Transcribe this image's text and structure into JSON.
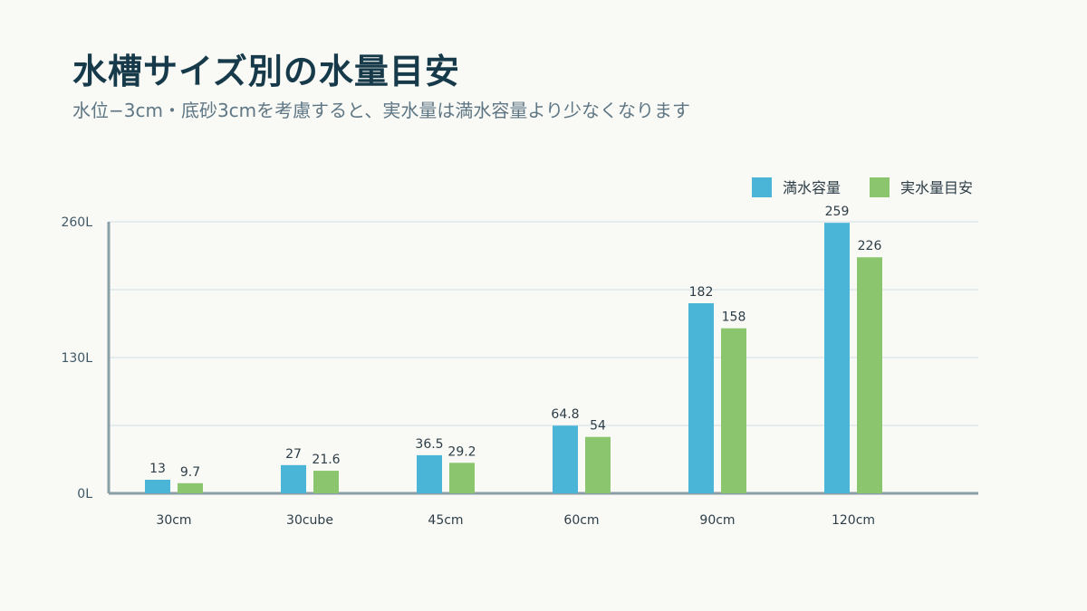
{
  "header": {
    "title": "水槽サイズ別の水量目安",
    "subtitle": "水位−3cm・底砂3cmを考慮すると、実水量は満水容量より少なくなります"
  },
  "colors": {
    "full": "#4ab5d6",
    "actual": "#8bc66e",
    "grid": "#dde8ec",
    "axis": "#8a9ea8"
  },
  "chart_data": {
    "type": "bar",
    "categories": [
      "30cm",
      "30cube",
      "45cm",
      "60cm",
      "90cm",
      "120cm"
    ],
    "series": [
      {
        "name": "満水容量",
        "values": [
          13,
          27,
          36.5,
          64.8,
          182,
          259
        ],
        "labels": [
          "13",
          "27",
          "36.5",
          "64.8",
          "182",
          "259"
        ]
      },
      {
        "name": "実水量目安",
        "values": [
          9.7,
          21.6,
          29.2,
          54,
          158,
          226
        ],
        "labels": [
          "9.7",
          "21.6",
          "29.2",
          "54",
          "158",
          "226"
        ]
      }
    ],
    "ylim": [
      0,
      260
    ],
    "yticks": [
      0,
      130,
      260
    ],
    "ytick_labels": [
      "0L",
      "130L",
      "260L"
    ],
    "grid": true,
    "legend": "top-right"
  }
}
